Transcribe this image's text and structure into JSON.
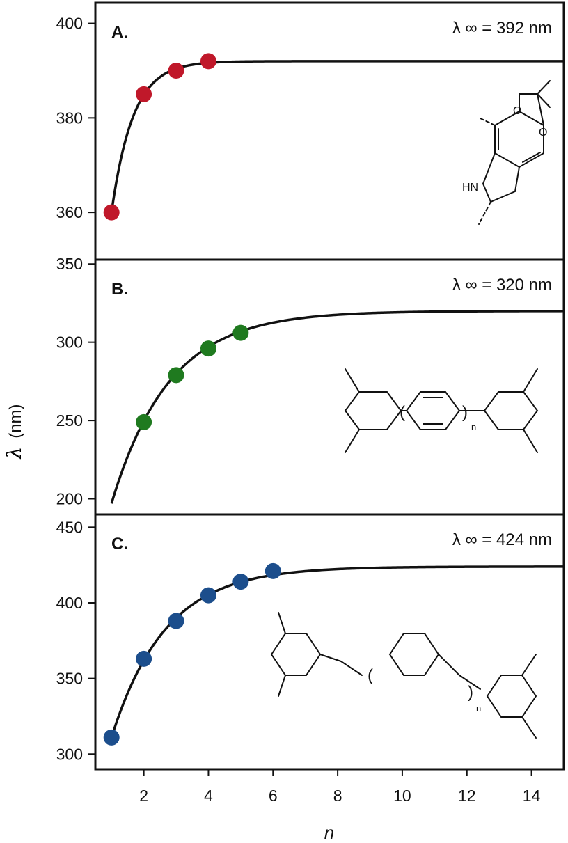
{
  "figure": {
    "ylabel_symbol": "λ",
    "ylabel_unit": "(nm)",
    "xlabel": "n"
  },
  "chart_data": [
    {
      "type": "scatter",
      "panel_label": "A.",
      "annotation": "λ ∞ = 392 nm",
      "lambda_inf": 392,
      "xlim": [
        0.5,
        15
      ],
      "ylim": [
        350,
        402
      ],
      "yticks": [
        360,
        380,
        400
      ],
      "marker_color": "#c0182a",
      "points": {
        "x": [
          1,
          2,
          3,
          4
        ],
        "y": [
          360,
          385,
          390,
          392
        ]
      },
      "fit": {
        "x0": 1,
        "y0": 360,
        "k": 1.5
      },
      "molecule": {
        "labels": [
          "O",
          "O",
          "HN"
        ]
      },
      "show_xticks": false
    },
    {
      "type": "scatter",
      "panel_label": "B.",
      "annotation": "λ ∞ = 320 nm",
      "lambda_inf": 320,
      "xlim": [
        0.5,
        15
      ],
      "ylim": [
        190,
        351
      ],
      "yticks": [
        200,
        250,
        300,
        350
      ],
      "marker_color": "#1f7a1f",
      "points": {
        "x": [
          2,
          3,
          4,
          5
        ],
        "y": [
          249,
          279,
          296,
          306
        ]
      },
      "fit": {
        "x0": 1,
        "y0": 197,
        "k": 0.56
      },
      "molecule": {
        "labels": [
          "(",
          ")",
          "n"
        ]
      },
      "show_xticks": false
    },
    {
      "type": "scatter",
      "panel_label": "C.",
      "annotation": "λ ∞ = 424 nm",
      "lambda_inf": 424,
      "xlim": [
        0.5,
        15
      ],
      "ylim": [
        290,
        452
      ],
      "yticks": [
        300,
        350,
        400,
        450
      ],
      "marker_color": "#1c4e8c",
      "points": {
        "x": [
          1,
          2,
          3,
          4,
          5,
          6
        ],
        "y": [
          311,
          363,
          388,
          405,
          414,
          421
        ]
      },
      "fit": {
        "x0": 1,
        "y0": 311,
        "k": 0.6
      },
      "molecule": {
        "labels": [
          "(",
          ")",
          "n"
        ]
      },
      "show_xticks": true,
      "xticks": [
        2,
        4,
        6,
        8,
        10,
        12,
        14
      ]
    }
  ]
}
